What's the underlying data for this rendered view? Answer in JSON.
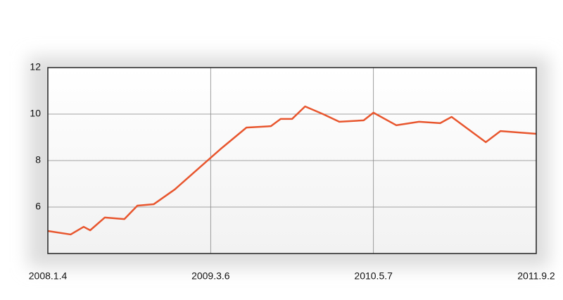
{
  "chart_data": {
    "type": "line",
    "x": [
      0,
      0.14,
      0.22,
      0.26,
      0.35,
      0.47,
      0.55,
      0.65,
      0.78,
      0.99,
      1.07,
      1.22,
      1.37,
      1.43,
      1.5,
      1.58,
      1.69,
      1.79,
      1.94,
      2.0,
      2.14,
      2.28,
      2.41,
      2.48,
      2.69,
      2.78,
      3.0
    ],
    "values": [
      4.97,
      4.82,
      5.15,
      5.0,
      5.55,
      5.48,
      6.06,
      6.12,
      6.76,
      8.06,
      8.55,
      9.42,
      9.48,
      9.79,
      9.79,
      10.33,
      10.0,
      9.67,
      9.73,
      10.06,
      9.52,
      9.67,
      9.61,
      9.88,
      8.79,
      9.27,
      9.15
    ],
    "color": "#e8562e",
    "xlim": [
      0,
      3
    ],
    "xticks": [
      {
        "value": 0,
        "label": "2008.1.4"
      },
      {
        "value": 1,
        "label": "2009.3.6"
      },
      {
        "value": 2,
        "label": "2010.5.7"
      },
      {
        "value": 3,
        "label": "2011.9.2"
      }
    ],
    "ylim": [
      4,
      12
    ],
    "yticks": [
      6,
      8,
      10,
      12
    ],
    "grid": true
  }
}
